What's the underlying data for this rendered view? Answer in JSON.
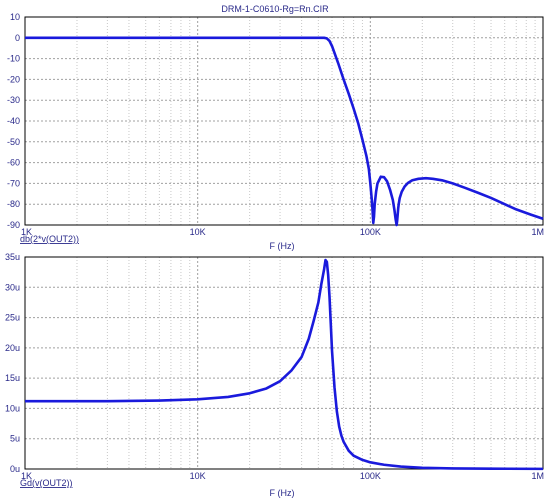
{
  "title": "DRM-1-C0610-Rg=Rn.CIR",
  "colors": {
    "trace": "#1a1adc",
    "grid_major": "#a0a0a0",
    "grid_minor": "#c8c8c8",
    "frame": "#000000",
    "tick_text": "#2a2a8a",
    "label_text": "#2a2a8a"
  },
  "chart_data": [
    {
      "type": "line",
      "title": "DRM-1-C0610-Rg=Rn.CIR",
      "xlabel": "F (Hz)",
      "ylabel": "db(2*v(OUT2))",
      "xscale": "log",
      "xlim": [
        1000,
        1000000
      ],
      "ylim": [
        -90,
        10
      ],
      "grid": true,
      "xtick_values": [
        1000,
        10000,
        100000,
        1000000
      ],
      "xtick_labels": [
        "1K",
        "10K",
        "100K",
        "1M"
      ],
      "ytick_values": [
        10,
        0,
        -10,
        -20,
        -30,
        -40,
        -50,
        -60,
        -70,
        -80,
        -90
      ],
      "ytick_labels": [
        "10",
        "0",
        "-10",
        "-20",
        "-30",
        "-40",
        "-50",
        "-60",
        "-70",
        "-80",
        "-90"
      ],
      "series": [
        {
          "name": "db(2*v(OUT2))",
          "x": [
            1000,
            3000,
            10000,
            30000,
            50000,
            54000,
            56000,
            58000,
            60000,
            65000,
            70000,
            75000,
            80000,
            85000,
            90000,
            95000,
            98000,
            100000,
            102000,
            103000,
            104000,
            105000,
            106000,
            108000,
            110000,
            115000,
            120000,
            125000,
            130000,
            135000,
            138000,
            140000,
            142000,
            143000,
            144000,
            145000,
            146000,
            148000,
            152000,
            158000,
            165000,
            175000,
            190000,
            210000,
            230000,
            260000,
            300000,
            350000,
            420000,
            500000,
            600000,
            700000,
            850000,
            1000000
          ],
          "y": [
            0,
            0,
            0,
            0,
            0,
            0,
            -0.3,
            -1.5,
            -4,
            -12,
            -20,
            -27,
            -34,
            -41,
            -49,
            -57,
            -63,
            -70,
            -78,
            -83,
            -89,
            -86,
            -80,
            -74,
            -70,
            -66.8,
            -67,
            -69,
            -73,
            -78,
            -83,
            -87,
            -90,
            -88,
            -85,
            -82,
            -80,
            -77,
            -74,
            -71.5,
            -69.8,
            -68.5,
            -67.8,
            -67.5,
            -67.8,
            -68.5,
            -70,
            -72,
            -74.5,
            -77,
            -80,
            -82.5,
            -85,
            -87
          ]
        }
      ]
    },
    {
      "type": "line",
      "title": "",
      "xlabel": "F (Hz)",
      "ylabel": "Gd(v(OUT2))",
      "xscale": "log",
      "xlim": [
        1000,
        1000000
      ],
      "ylim": [
        0,
        3.5e-05
      ],
      "grid": true,
      "xtick_values": [
        1000,
        10000,
        100000,
        1000000
      ],
      "xtick_labels": [
        "1K",
        "10K",
        "100K",
        "1M"
      ],
      "ytick_values": [
        3.5e-05,
        3e-05,
        2.5e-05,
        2e-05,
        1.5e-05,
        1e-05,
        5e-06,
        0
      ],
      "ytick_labels": [
        "35u",
        "30u",
        "25u",
        "20u",
        "15u",
        "10u",
        "5u",
        "0u"
      ],
      "series": [
        {
          "name": "Gd(v(OUT2))",
          "x": [
            1000,
            3000,
            6000,
            10000,
            15000,
            20000,
            25000,
            30000,
            35000,
            40000,
            44000,
            47000,
            50000,
            52000,
            54000,
            55000,
            56000,
            57000,
            58000,
            59000,
            60000,
            62000,
            64000,
            66000,
            68000,
            70000,
            75000,
            80000,
            90000,
            100000,
            120000,
            150000,
            200000,
            300000,
            500000,
            1000000
          ],
          "y": [
            1.12e-05,
            1.12e-05,
            1.13e-05,
            1.15e-05,
            1.19e-05,
            1.25e-05,
            1.33e-05,
            1.45e-05,
            1.63e-05,
            1.85e-05,
            2.15e-05,
            2.45e-05,
            2.75e-05,
            3.05e-05,
            3.3e-05,
            3.45e-05,
            3.42e-05,
            3.2e-05,
            2.85e-05,
            2.4e-05,
            1.95e-05,
            1.35e-05,
            9.5e-06,
            7e-06,
            5.5e-06,
            4.5e-06,
            3e-06,
            2.2e-06,
            1.5e-06,
            1.1e-06,
            7e-07,
            4e-07,
            2e-07,
            1e-07,
            5e-08,
            2e-08
          ]
        }
      ]
    }
  ]
}
